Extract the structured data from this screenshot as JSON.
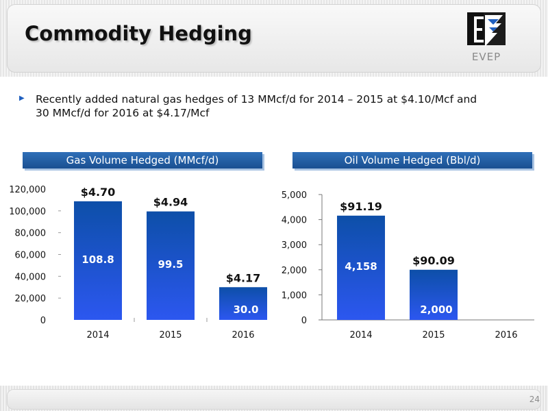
{
  "slide": {
    "title": "Commodity Hedging",
    "logo_text": "EVEP",
    "bullet": "Recently added natural gas hedges of 13 MMcf/d for 2014 – 2015 at $4.10/Mcf and 30 MMcf/d for 2016 at $4.17/Mcf",
    "page_number": "24"
  },
  "colors": {
    "bar_top": "#0d4fa8",
    "bar_bottom": "#2c57f0",
    "header_blue": "#1f5aa3",
    "bullet_blue": "#1f5fbf"
  },
  "chart_data": [
    {
      "type": "bar",
      "title": "Gas Volume Hedged (MMcf/d)",
      "categories": [
        "2014",
        "2015",
        "2016"
      ],
      "values": [
        108800,
        99500,
        30000
      ],
      "bar_labels": [
        "108.8",
        "99.5",
        "30.0"
      ],
      "price_labels": [
        "$4.70",
        "$4.94",
        "$4.17"
      ],
      "yticks": [
        "0",
        "20,000",
        "40,000",
        "60,000",
        "80,000",
        "100,000",
        "120,000"
      ],
      "ytick_values": [
        0,
        20000,
        40000,
        60000,
        80000,
        100000,
        120000
      ],
      "ylim": [
        0,
        120000
      ],
      "grid": false,
      "legend": "none"
    },
    {
      "type": "bar",
      "title": "Oil Volume Hedged (Bbl/d)",
      "categories": [
        "2014",
        "2015",
        "2016"
      ],
      "values": [
        4158,
        2000,
        null
      ],
      "bar_labels": [
        "4,158",
        "2,000",
        ""
      ],
      "price_labels": [
        "$91.19",
        "$90.09",
        ""
      ],
      "yticks": [
        "0",
        "1,000",
        "2,000",
        "3,000",
        "4,000",
        "5,000"
      ],
      "ytick_values": [
        0,
        1000,
        2000,
        3000,
        4000,
        5000
      ],
      "ylim": [
        0,
        5000
      ],
      "grid": false,
      "legend": "none"
    }
  ]
}
